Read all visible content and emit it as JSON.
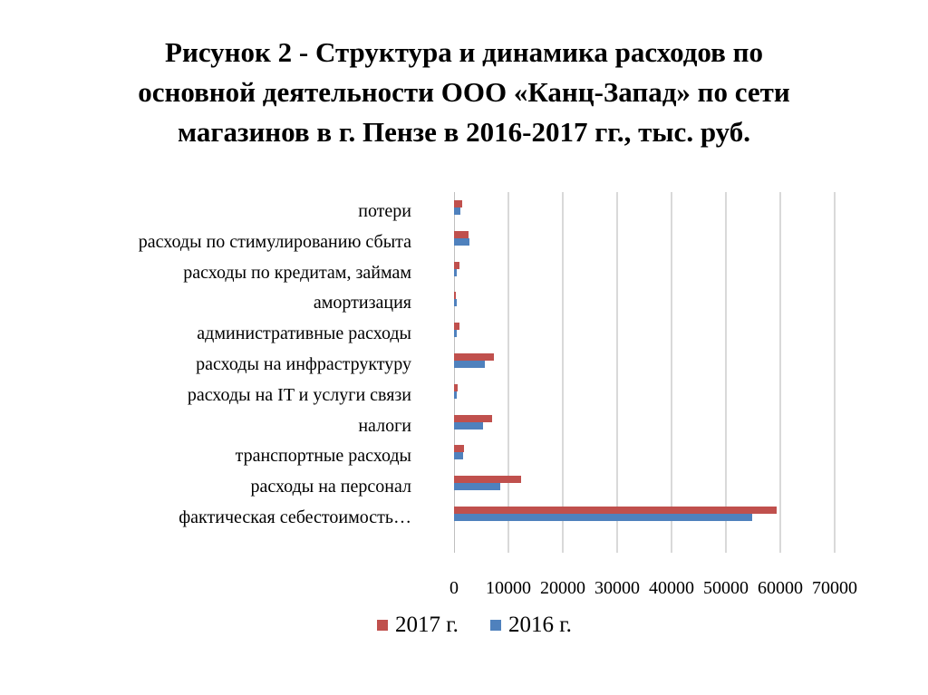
{
  "title": {
    "lines": [
      "Рисунок 2 - Структура и динамика расходов по",
      "основной деятельности ООО «Канц-Запад» по сети",
      "магазинов в г. Пензе в 2016-2017 гг., тыс. руб."
    ]
  },
  "legend": [
    {
      "label": "2017 г.",
      "color": "#c0504d"
    },
    {
      "label": "2016 г.",
      "color": "#4f81bd"
    }
  ],
  "x_ticks": [
    "0",
    "10000",
    "20000",
    "30000",
    "40000",
    "50000",
    "60000",
    "70000"
  ],
  "chart_data": {
    "type": "bar",
    "orientation": "horizontal",
    "title": "Рисунок 2 - Структура и динамика расходов по основной деятельности ООО «Канц-Запад» по сети магазинов в г. Пензе в 2016-2017 гг., тыс. руб.",
    "categories": [
      "потери",
      "расходы по стимулированию сбыта",
      "расходы по кредитам, займам",
      "амортизация",
      "административные расходы",
      "расходы на инфраструктуру",
      "расходы на IT и услуги связи",
      "налоги",
      "транспортные расходы",
      "расходы на персонал",
      "фактическая себестоимость…"
    ],
    "series": [
      {
        "name": "2017 г.",
        "color": "#c0504d",
        "values": [
          1500,
          2700,
          1000,
          300,
          1000,
          7400,
          700,
          7000,
          1800,
          12300,
          59300
        ]
      },
      {
        "name": "2016 г.",
        "color": "#4f81bd",
        "values": [
          1200,
          2800,
          500,
          500,
          500,
          5700,
          500,
          5400,
          1700,
          8500,
          54800
        ]
      }
    ],
    "xlabel": "",
    "ylabel": "",
    "xlim": [
      0,
      70000
    ],
    "x_ticks": [
      0,
      10000,
      20000,
      30000,
      40000,
      50000,
      60000,
      70000
    ],
    "grid": true,
    "legend_position": "bottom"
  }
}
